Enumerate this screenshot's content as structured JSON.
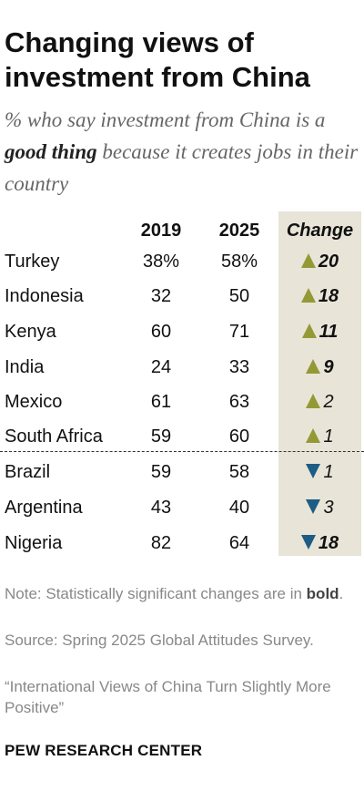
{
  "title": "Changing views of investment from China",
  "subtitle": {
    "before": "% who say investment from China is a ",
    "bold": "good thing",
    "after": " because it creates jobs in their country"
  },
  "chart_data": {
    "type": "table",
    "columns": [
      "2019",
      "2025",
      "Change"
    ],
    "rows": [
      {
        "country": "Turkey",
        "v2019": "38%",
        "v2025": "58%",
        "direction": "up",
        "change": "20",
        "significant": true
      },
      {
        "country": "Indonesia",
        "v2019": "32",
        "v2025": "50",
        "direction": "up",
        "change": "18",
        "significant": true
      },
      {
        "country": "Kenya",
        "v2019": "60",
        "v2025": "71",
        "direction": "up",
        "change": "11",
        "significant": true
      },
      {
        "country": "India",
        "v2019": "24",
        "v2025": "33",
        "direction": "up",
        "change": "9",
        "significant": true
      },
      {
        "country": "Mexico",
        "v2019": "61",
        "v2025": "63",
        "direction": "up",
        "change": "2",
        "significant": false
      },
      {
        "country": "South Africa",
        "v2019": "59",
        "v2025": "60",
        "direction": "up",
        "change": "1",
        "significant": false
      },
      {
        "country": "Brazil",
        "v2019": "59",
        "v2025": "58",
        "direction": "down",
        "change": "1",
        "significant": false
      },
      {
        "country": "Argentina",
        "v2019": "43",
        "v2025": "40",
        "direction": "down",
        "change": "3",
        "significant": false
      },
      {
        "country": "Nigeria",
        "v2019": "82",
        "v2025": "64",
        "direction": "down",
        "change": "18",
        "significant": true
      }
    ]
  },
  "colors": {
    "increase": "#949936",
    "decrease": "#1d5c84",
    "change_column_bg": "#e8e5d8"
  },
  "note": {
    "before": "Note: Statistically significant changes are in ",
    "bold": "bold",
    "after": "."
  },
  "source": "Source: Spring 2025 Global Attitudes Survey.",
  "reference": "“International Views of China Turn Slightly More Positive”",
  "brand": "PEW RESEARCH CENTER"
}
